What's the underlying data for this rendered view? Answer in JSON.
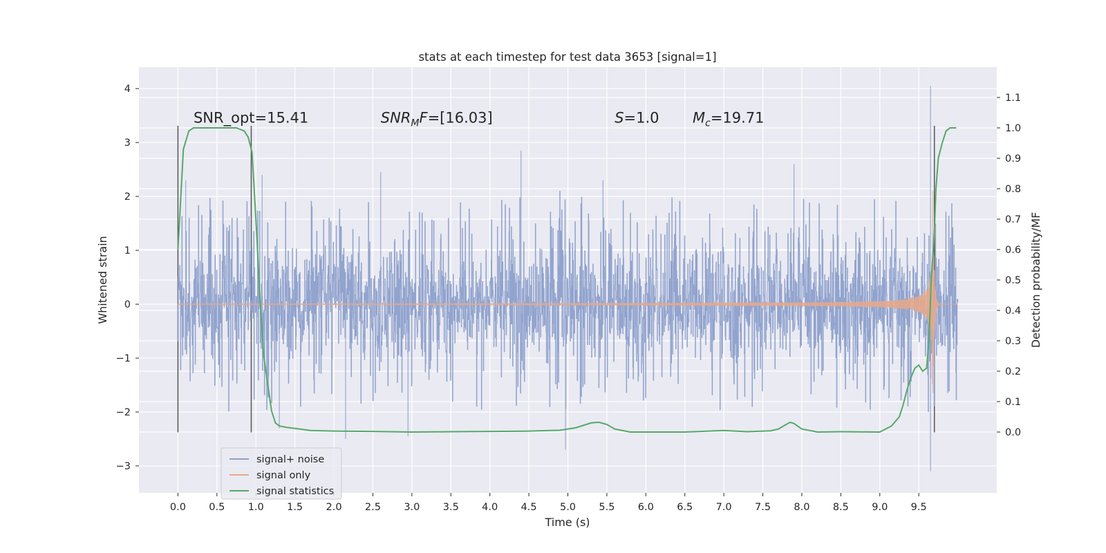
{
  "chart_data": {
    "type": "line",
    "title": "stats at each timestep for test data 3653 [signal=1]",
    "xlabel": "Time (s)",
    "ylabel_left": "Whitened strain",
    "ylabel_right": "Detection probability/MF",
    "xlim": [
      -0.5,
      10.5
    ],
    "ylim_left": [
      -3.5,
      4.4
    ],
    "ylim_right": [
      -0.2,
      1.2
    ],
    "x_ticks": [
      0.0,
      0.5,
      1.0,
      1.5,
      2.0,
      2.5,
      3.0,
      3.5,
      4.0,
      4.5,
      5.0,
      5.5,
      6.0,
      6.5,
      7.0,
      7.5,
      8.0,
      8.5,
      9.0,
      9.5
    ],
    "x_tick_labels": [
      "0.0",
      "0.5",
      "1.0",
      "1.5",
      "2.0",
      "2.5",
      "3.0",
      "3.5",
      "4.0",
      "4.5",
      "5.0",
      "5.5",
      "6.0",
      "6.5",
      "7.0",
      "7.5",
      "8.0",
      "8.5",
      "9.0",
      "9.5"
    ],
    "y_left_ticks": [
      -3,
      -2,
      -1,
      0,
      1,
      2,
      3,
      4
    ],
    "y_left_tick_labels": [
      "−3",
      "−2",
      "−1",
      "0",
      "1",
      "2",
      "3",
      "4"
    ],
    "y_right_ticks": [
      0.0,
      0.1,
      0.2,
      0.3,
      0.4,
      0.5,
      0.6,
      0.7,
      0.8,
      0.9,
      1.0,
      1.1
    ],
    "y_right_tick_labels": [
      "0.0",
      "0.1",
      "0.2",
      "0.3",
      "0.4",
      "0.5",
      "0.6",
      "0.7",
      "0.8",
      "0.9",
      "1.0",
      "1.1"
    ],
    "grid": true,
    "legend_position": "lower-left",
    "annotations": [
      {
        "text": "SNR_opt=15.41",
        "x": 0.2
      },
      {
        "text": "SNR_MF=[16.03]",
        "x": 2.6
      },
      {
        "text": "S=1.0",
        "x": 5.6
      },
      {
        "text": "M_c=19.71",
        "x": 6.6
      }
    ],
    "vertical_markers": [
      0.0,
      0.94,
      9.7
    ],
    "series": [
      {
        "name": "signal+ noise",
        "axis": "left",
        "color": "#8da0cb",
        "x_range": [
          0.0,
          10.0
        ],
        "typical_amplitude": 1.0,
        "extreme_values": [
          {
            "x": 0.1,
            "y": 2.3
          },
          {
            "x": 1.08,
            "y": 2.4
          },
          {
            "x": 1.3,
            "y": -2.3
          },
          {
            "x": 2.15,
            "y": -2.5
          },
          {
            "x": 2.6,
            "y": 2.45
          },
          {
            "x": 2.95,
            "y": -2.45
          },
          {
            "x": 4.4,
            "y": 2.85
          },
          {
            "x": 4.97,
            "y": -2.7
          },
          {
            "x": 5.45,
            "y": 2.3
          },
          {
            "x": 7.9,
            "y": 2.6
          },
          {
            "x": 9.65,
            "y": 4.05
          },
          {
            "x": 9.65,
            "y": -3.1
          }
        ]
      },
      {
        "name": "signal only",
        "axis": "left",
        "color": "#e5a98c",
        "x_range": [
          0.0,
          10.0
        ],
        "chirp_end": 9.68,
        "amplitude_start": 0.008,
        "amplitude_peak": 2.1
      },
      {
        "name": "signal statistics",
        "axis": "right",
        "color": "#55a868",
        "x": [
          0.0,
          0.07,
          0.14,
          0.2,
          0.3,
          0.5,
          0.75,
          0.85,
          0.9,
          0.95,
          1.0,
          1.05,
          1.1,
          1.15,
          1.2,
          1.25,
          1.3,
          1.4,
          1.5,
          1.7,
          2.0,
          2.5,
          3.0,
          3.5,
          4.0,
          4.5,
          4.9,
          5.1,
          5.3,
          5.4,
          5.5,
          5.6,
          5.8,
          6.0,
          6.5,
          7.0,
          7.3,
          7.6,
          7.7,
          7.8,
          7.85,
          7.9,
          8.0,
          8.2,
          8.5,
          9.0,
          9.15,
          9.25,
          9.3,
          9.35,
          9.4,
          9.45,
          9.5,
          9.55,
          9.6,
          9.63,
          9.66,
          9.7,
          9.72,
          9.75,
          9.8,
          9.85,
          9.9,
          9.95,
          9.98
        ],
        "y": [
          0.6,
          0.93,
          0.99,
          1.0,
          1.0,
          1.0,
          1.0,
          0.99,
          0.97,
          0.92,
          0.7,
          0.45,
          0.25,
          0.16,
          0.07,
          0.03,
          0.02,
          0.015,
          0.012,
          0.005,
          0.003,
          0.002,
          0.0,
          0.001,
          0.002,
          0.003,
          0.006,
          0.014,
          0.03,
          0.032,
          0.025,
          0.01,
          0.0,
          0.0,
          0.0,
          0.005,
          0.001,
          0.004,
          0.01,
          0.025,
          0.032,
          0.028,
          0.01,
          0.0,
          0.001,
          0.0,
          0.02,
          0.05,
          0.09,
          0.14,
          0.18,
          0.21,
          0.22,
          0.2,
          0.21,
          0.3,
          0.5,
          0.66,
          0.8,
          0.9,
          0.95,
          0.99,
          1.0,
          1.0,
          1.0
        ]
      }
    ]
  }
}
